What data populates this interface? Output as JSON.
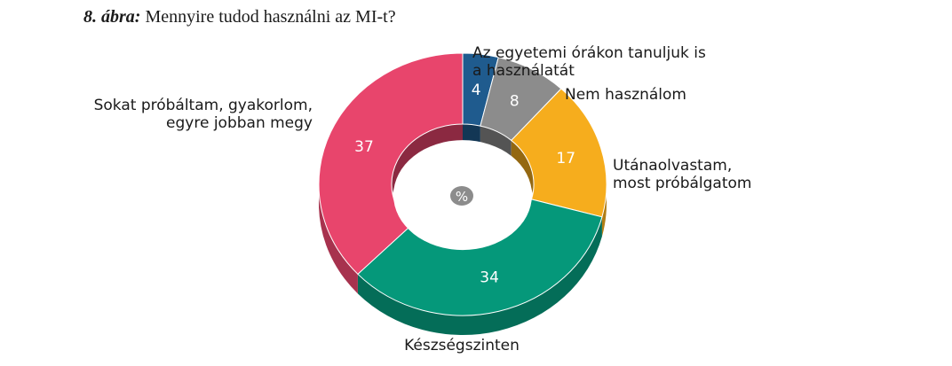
{
  "title": {
    "lead": "8. ábra:",
    "text": "Mennyire tudod használni az MI-t?"
  },
  "center_label": "%",
  "chart_data": {
    "type": "pie",
    "variant": "3d-donut",
    "title": "8. ábra: Mennyire tudod használni az MI-t?",
    "unit": "%",
    "slices": [
      {
        "label": "Az egyetemi órákon tanuljuk is a használatát",
        "label_lines": [
          "Az egyetemi órákon tanuljuk is",
          "a használatát"
        ],
        "value": 4,
        "color": "#1f5b8e"
      },
      {
        "label": "Nem használom",
        "label_lines": [
          "Nem használom"
        ],
        "value": 8,
        "color": "#8c8c8c"
      },
      {
        "label": "Utánaolvastam, most próbálgatom",
        "label_lines": [
          "Utánaolvastam,",
          "most próbálgatom"
        ],
        "value": 17,
        "color": "#f6ad1d"
      },
      {
        "label": "Készségszinten",
        "label_lines": [
          "Készségszinten"
        ],
        "value": 34,
        "color": "#05987a"
      },
      {
        "label": "Sokat próbáltam, gyakorlom, egyre jobban megy",
        "label_lines": [
          "Sokat próbáltam, gyakorlom,",
          "egyre jobban megy"
        ],
        "value": 37,
        "color": "#e8456c"
      }
    ]
  }
}
